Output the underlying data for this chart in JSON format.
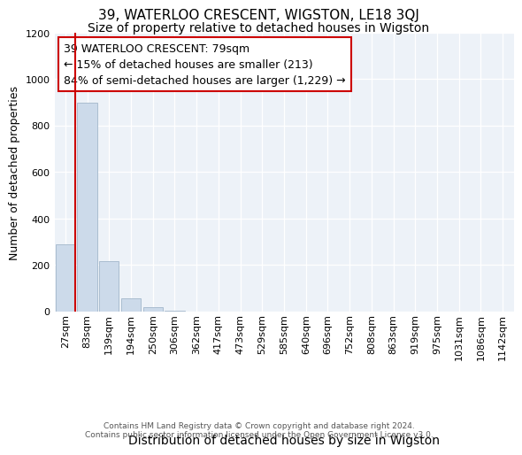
{
  "title": "39, WATERLOO CRESCENT, WIGSTON, LE18 3QJ",
  "subtitle": "Size of property relative to detached houses in Wigston",
  "xlabel": "Distribution of detached houses by size in Wigston",
  "ylabel": "Number of detached properties",
  "bar_labels": [
    "27sqm",
    "83sqm",
    "139sqm",
    "194sqm",
    "250sqm",
    "306sqm",
    "362sqm",
    "417sqm",
    "473sqm",
    "529sqm",
    "585sqm",
    "640sqm",
    "696sqm",
    "752sqm",
    "808sqm",
    "863sqm",
    "919sqm",
    "975sqm",
    "1031sqm",
    "1086sqm",
    "1142sqm"
  ],
  "bar_values": [
    290,
    900,
    215,
    55,
    18,
    5,
    0,
    0,
    0,
    0,
    0,
    0,
    0,
    0,
    0,
    0,
    0,
    0,
    0,
    0,
    0
  ],
  "bar_color": "#ccdaea",
  "bar_edgecolor": "#aabdd0",
  "ylim": [
    0,
    1200
  ],
  "yticks": [
    0,
    200,
    400,
    600,
    800,
    1000,
    1200
  ],
  "property_line_x": 0,
  "property_line_color": "#cc0000",
  "annotation_text": "39 WATERLOO CRESCENT: 79sqm\n← 15% of detached houses are smaller (213)\n84% of semi-detached houses are larger (1,229) →",
  "annotation_box_color": "#cc0000",
  "background_color": "#edf2f8",
  "footer_line1": "Contains HM Land Registry data © Crown copyright and database right 2024.",
  "footer_line2": "Contains public sector information licensed under the Open Government Licence v3.0.",
  "title_fontsize": 11,
  "subtitle_fontsize": 10,
  "xlabel_fontsize": 10,
  "ylabel_fontsize": 9,
  "tick_fontsize": 8,
  "annotation_fontsize": 9
}
